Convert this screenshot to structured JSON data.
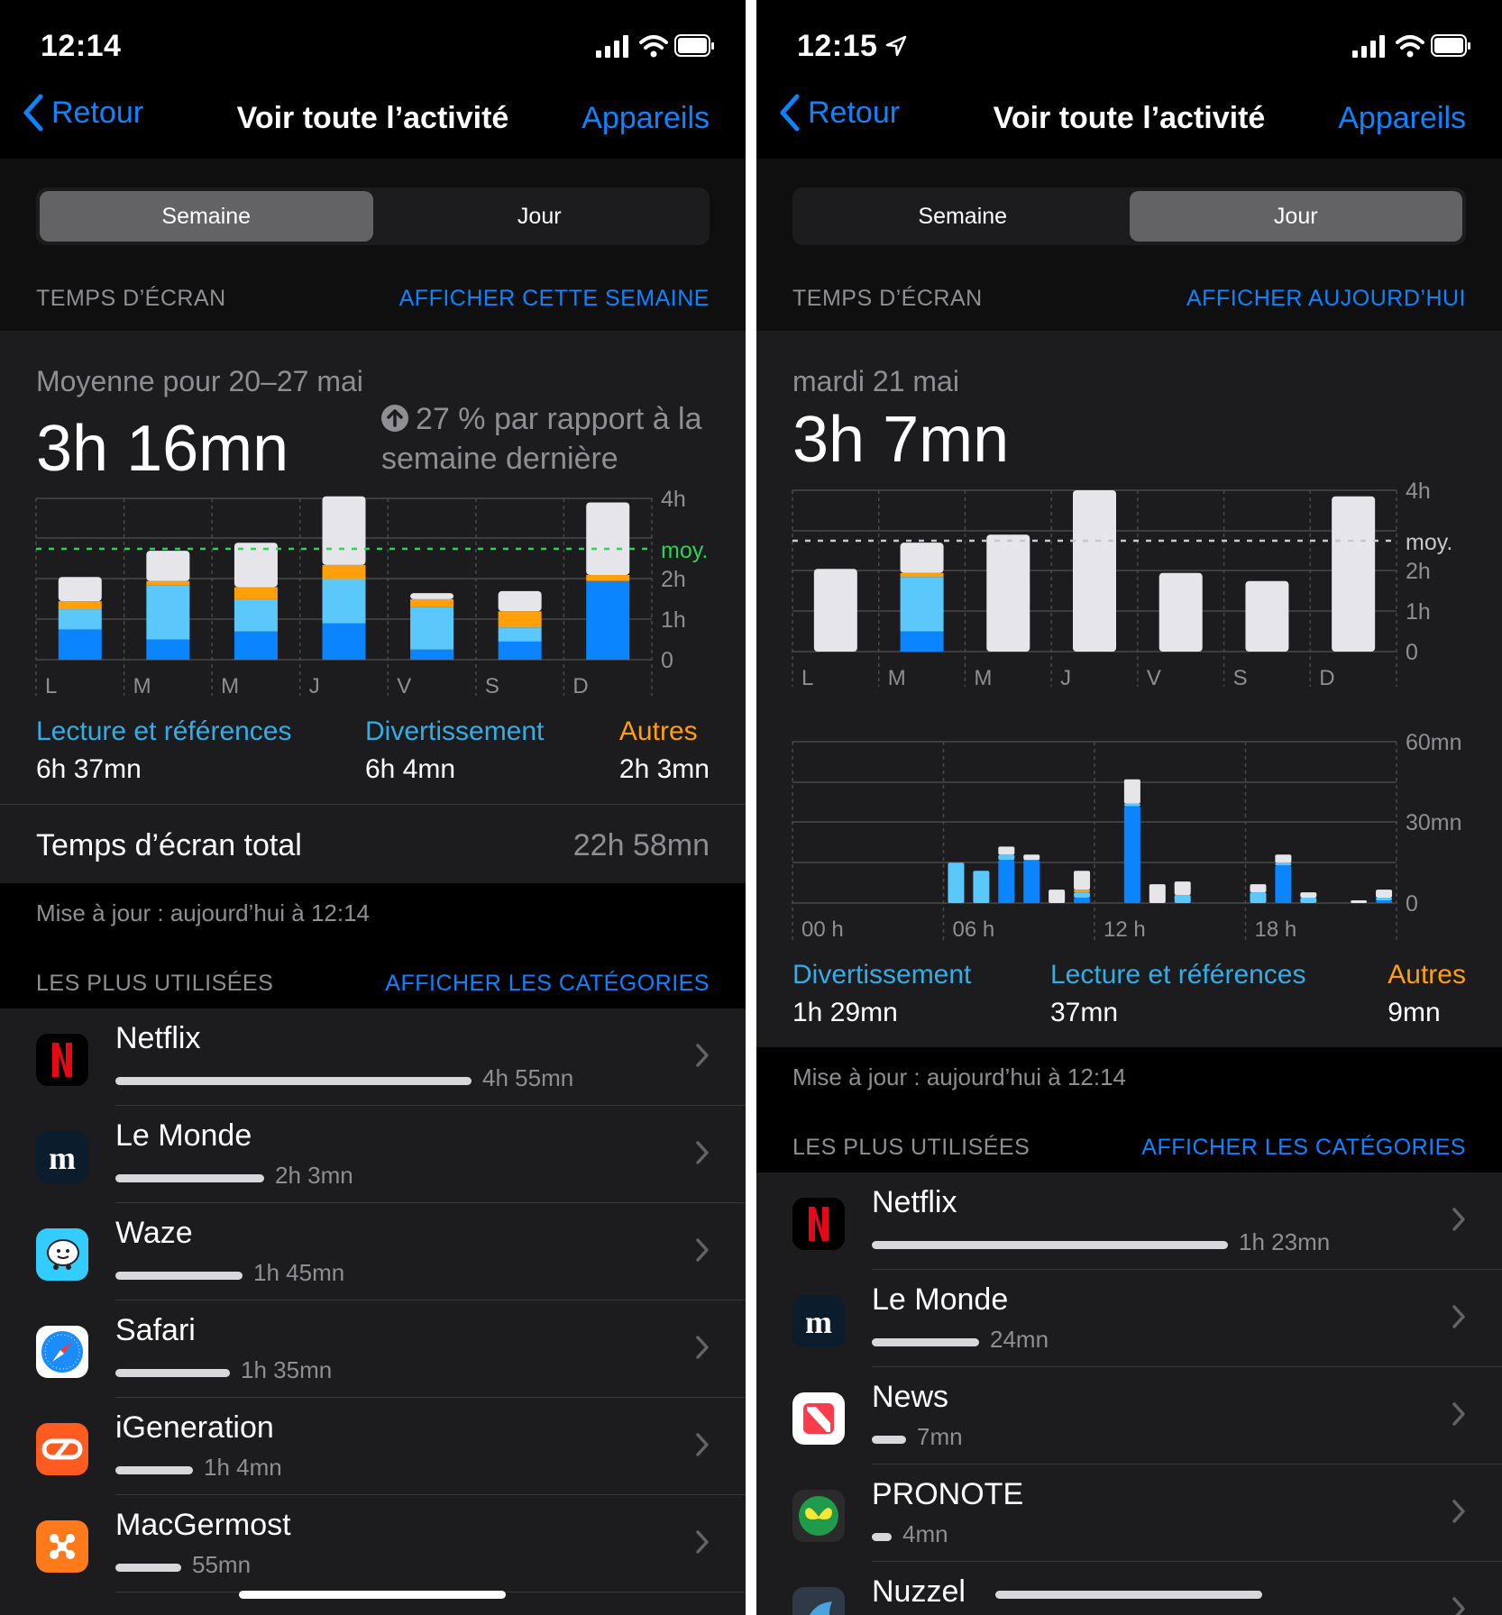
{
  "left": {
    "status_time": "12:14",
    "nav": {
      "back": "Retour",
      "title": "Voir toute l’activité",
      "right": "Appareils"
    },
    "segments": [
      "Semaine",
      "Jour"
    ],
    "selected_segment": 0,
    "screen_time_header": {
      "label": "TEMPS D’ÉCRAN",
      "action": "AFFICHER CETTE SEMAINE"
    },
    "summary": {
      "subtitle": "Moyenne pour 20–27 mai",
      "value": "3h 16mn",
      "comparison": "27 % par rapport à la semaine dernière"
    },
    "categories": [
      {
        "name": "Lecture et références",
        "value": "6h 37mn",
        "color": "#32ade6"
      },
      {
        "name": "Divertissement",
        "value": "6h 4mn",
        "color": "#32ade6"
      },
      {
        "name": "Autres",
        "value": "2h 3mn",
        "color": "#ff9f0a"
      }
    ],
    "total": {
      "label": "Temps d’écran total",
      "value": "22h 58mn"
    },
    "updated": "Mise à jour : aujourd’hui à 12:14",
    "most_used_header": {
      "label": "LES PLUS UTILISÉES",
      "action": "AFFICHER LES CATÉGORIES"
    },
    "apps": [
      {
        "name": "Netflix",
        "time": "4h 55mn",
        "fraction": 1.0,
        "icon": "netflix-icon"
      },
      {
        "name": "Le Monde",
        "time": "2h 3mn",
        "fraction": 0.417,
        "icon": "le-monde-icon"
      },
      {
        "name": "Waze",
        "time": "1h 45mn",
        "fraction": 0.356,
        "icon": "waze-icon"
      },
      {
        "name": "Safari",
        "time": "1h 35mn",
        "fraction": 0.322,
        "icon": "safari-icon"
      },
      {
        "name": "iGeneration",
        "time": "1h 4mn",
        "fraction": 0.217,
        "icon": "igeneration-icon"
      },
      {
        "name": "MacGermost",
        "time": "55mn",
        "fraction": 0.186,
        "icon": "macgermost-icon"
      }
    ]
  },
  "right": {
    "status_time": "12:15",
    "nav": {
      "back": "Retour",
      "title": "Voir toute l’activité",
      "right": "Appareils"
    },
    "segments": [
      "Semaine",
      "Jour"
    ],
    "selected_segment": 1,
    "screen_time_header": {
      "label": "TEMPS D’ÉCRAN",
      "action": "AFFICHER AUJOURD’HUI"
    },
    "summary": {
      "subtitle": "mardi 21 mai",
      "value": "3h 7mn"
    },
    "categories": [
      {
        "name": "Divertissement",
        "value": "1h 29mn",
        "color": "#32ade6"
      },
      {
        "name": "Lecture et références",
        "value": "37mn",
        "color": "#32ade6"
      },
      {
        "name": "Autres",
        "value": "9mn",
        "color": "#ff9f0a"
      }
    ],
    "updated": "Mise à jour : aujourd’hui à 12:14",
    "most_used_header": {
      "label": "LES PLUS UTILISÉES",
      "action": "AFFICHER LES CATÉGORIES"
    },
    "apps": [
      {
        "name": "Netflix",
        "time": "1h 23mn",
        "fraction": 1.0,
        "icon": "netflix-icon"
      },
      {
        "name": "Le Monde",
        "time": "24mn",
        "fraction": 0.3,
        "icon": "le-monde-icon"
      },
      {
        "name": "News",
        "time": "7mn",
        "fraction": 0.095,
        "icon": "news-icon"
      },
      {
        "name": "PRONOTE",
        "time": "4mn",
        "fraction": 0.055,
        "icon": "pronote-icon"
      },
      {
        "name": "Nuzzel",
        "time": "",
        "fraction": 0.75,
        "icon": "nuzzel-icon"
      }
    ]
  },
  "chart_data": [
    {
      "type": "bar",
      "stacked": true,
      "chart": "week-left",
      "categories": [
        "L",
        "M",
        "M",
        "J",
        "V",
        "S",
        "D"
      ],
      "y_ticks": [
        "0",
        "1h",
        "2h",
        "4h"
      ],
      "average_label": "moy.",
      "ylim": [
        0,
        4
      ],
      "average": 2.75,
      "series": [
        {
          "name": "Lecture et références",
          "color": "#0a84ff",
          "values": [
            0.75,
            0.5,
            0.7,
            0.9,
            0.25,
            0.45,
            1.95
          ]
        },
        {
          "name": "Divertissement",
          "color": "#5ac8fa",
          "values": [
            0.5,
            1.35,
            0.8,
            1.1,
            1.05,
            0.35,
            0.0
          ]
        },
        {
          "name": "Autres",
          "color": "#ff9f0a",
          "values": [
            0.2,
            0.1,
            0.3,
            0.35,
            0.2,
            0.4,
            0.15
          ]
        },
        {
          "name": "",
          "color": "#e5e5ea",
          "values": [
            0.6,
            0.75,
            1.1,
            1.7,
            0.15,
            0.5,
            1.8
          ]
        }
      ]
    },
    {
      "type": "bar",
      "stacked": true,
      "chart": "week-right",
      "categories": [
        "L",
        "M",
        "M",
        "J",
        "V",
        "S",
        "D"
      ],
      "highlight_index": 1,
      "y_ticks": [
        "0",
        "1h",
        "2h",
        "4h"
      ],
      "average_label": "moy.",
      "ylim": [
        0,
        4
      ],
      "average": 2.75,
      "series": [
        {
          "name": "Lecture et références",
          "color": "#0a84ff",
          "values": [
            0,
            0.5,
            0,
            0,
            0,
            0,
            0
          ]
        },
        {
          "name": "Divertissement",
          "color": "#5ac8fa",
          "values": [
            0,
            1.35,
            0,
            0,
            0,
            0,
            0
          ]
        },
        {
          "name": "Autres",
          "color": "#ff9f0a",
          "values": [
            0,
            0.1,
            0,
            0,
            0,
            0,
            0
          ]
        },
        {
          "name": "",
          "color": "#e5e5ea",
          "values": [
            2.05,
            0.75,
            2.9,
            4.0,
            1.95,
            1.75,
            3.85
          ]
        }
      ]
    },
    {
      "type": "bar",
      "stacked": true,
      "chart": "day-right",
      "categories": [
        "00 h",
        "",
        "",
        "",
        "",
        "",
        "06 h",
        "",
        "",
        "",
        "",
        "",
        "12 h",
        "",
        "",
        "",
        "",
        "",
        "18 h",
        "",
        "",
        "",
        "",
        ""
      ],
      "x_labels": [
        "00 h",
        "06 h",
        "12 h",
        "18 h"
      ],
      "y_ticks": [
        "0",
        "30mn",
        "60mn"
      ],
      "ylim": [
        0,
        60
      ],
      "series": [
        {
          "name": "Lecture et références",
          "color": "#0a84ff",
          "values": [
            0,
            0,
            0,
            0,
            0,
            0,
            0,
            0,
            16,
            16,
            0,
            2,
            0,
            36,
            0,
            0,
            0,
            0,
            0,
            14,
            0,
            0,
            0,
            1
          ]
        },
        {
          "name": "Divertissement",
          "color": "#5ac8fa",
          "values": [
            0,
            0,
            0,
            0,
            0,
            0,
            15,
            12,
            2,
            0,
            0,
            2,
            0,
            1,
            0,
            3,
            0,
            0,
            4,
            1,
            2,
            0,
            0,
            1
          ]
        },
        {
          "name": "Autres",
          "color": "#ff9f0a",
          "values": [
            0,
            0,
            0,
            0,
            0,
            0,
            0,
            0,
            0,
            0,
            0,
            1,
            0,
            0,
            0,
            0,
            0,
            0,
            0,
            0,
            0,
            0,
            0,
            0
          ]
        },
        {
          "name": "",
          "color": "#e5e5ea",
          "values": [
            0,
            0,
            0,
            0,
            0,
            0,
            0,
            0,
            3,
            2,
            5,
            7,
            0,
            9,
            7,
            5,
            0,
            0,
            3,
            3,
            2,
            0,
            1,
            3
          ]
        }
      ]
    }
  ]
}
